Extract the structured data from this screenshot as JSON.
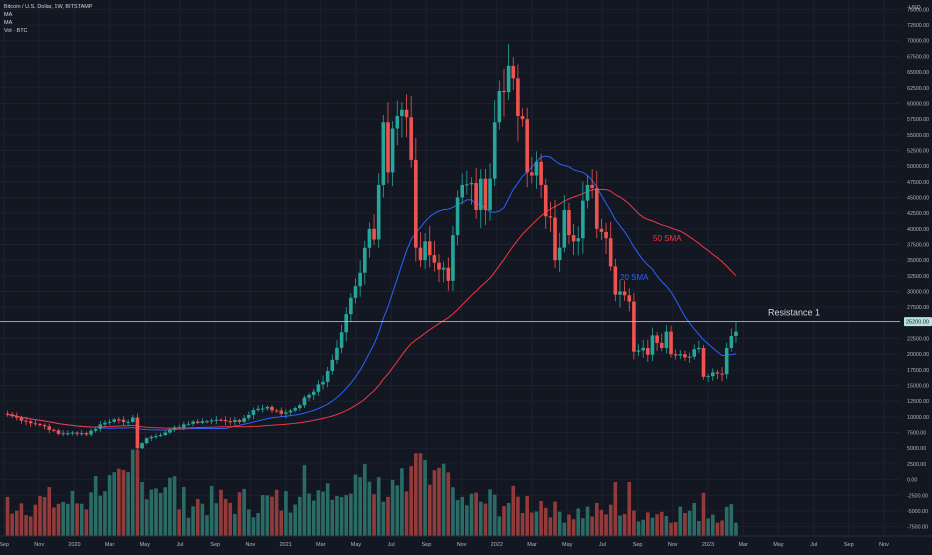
{
  "header": {
    "symbol_line": "Bitcoin / U.S. Dollar, 1W, BITSTAMP",
    "ma1_label": "MA",
    "ma2_label": "MA",
    "vol_label": "Vol · BTC"
  },
  "chart_data": {
    "type": "candlestick",
    "symbol": "Bitcoin / U.S. Dollar, 1W, BITSTAMP",
    "currency_label": "USD",
    "price_ticks": [
      75000,
      72500,
      70000,
      67500,
      65000,
      62500,
      60000,
      57500,
      55000,
      52500,
      50000,
      47500,
      45000,
      42500,
      40000,
      37500,
      35000,
      32500,
      30000,
      27500,
      25000,
      22500,
      20000,
      17500,
      15000,
      12500,
      10000,
      7500,
      5000,
      2500,
      0,
      -2500,
      -5000,
      -7500
    ],
    "price_tick_labels": [
      "75000.00",
      "72500.00",
      "70000.00",
      "67500.00",
      "65000.00",
      "62500.00",
      "60000.00",
      "57500.00",
      "55000.00",
      "52500.00",
      "50000.00",
      "47500.00",
      "45000.00",
      "42500.00",
      "40000.00",
      "37500.00",
      "35000.00",
      "32500.00",
      "30000.00",
      "27500.00",
      "25000.00",
      "22500.00",
      "20000.00",
      "17500.00",
      "15000.00",
      "12500.00",
      "10000.00",
      "7500.00",
      "5000.00",
      "2500.00",
      "0.00",
      "-2500.00",
      "-5000.00",
      "-7500.00"
    ],
    "ylim": [
      -9000,
      76500
    ],
    "time_labels": [
      "Sep",
      "Nov",
      "2020",
      "Mar",
      "May",
      "Jul",
      "Sep",
      "Nov",
      "2021",
      "Mar",
      "May",
      "Jul",
      "Sep",
      "Nov",
      "2022",
      "Mar",
      "May",
      "Jul",
      "Sep",
      "Nov",
      "2023",
      "Mar",
      "May",
      "Jul",
      "Sep",
      "Nov"
    ],
    "anchor_points": [
      [
        0,
        10400
      ],
      [
        4,
        9300
      ],
      [
        8,
        8500
      ],
      [
        11,
        7300
      ],
      [
        14,
        7500
      ],
      [
        17,
        7200
      ],
      [
        20,
        8800
      ],
      [
        23,
        9600
      ],
      [
        26,
        9200
      ],
      [
        27,
        9900
      ],
      [
        28,
        5000
      ],
      [
        30,
        6600
      ],
      [
        34,
        7500
      ],
      [
        38,
        8800
      ],
      [
        42,
        9300
      ],
      [
        46,
        9500
      ],
      [
        50,
        9200
      ],
      [
        53,
        11100
      ],
      [
        56,
        11600
      ],
      [
        59,
        10500
      ],
      [
        62,
        11400
      ],
      [
        65,
        13500
      ],
      [
        68,
        15600
      ],
      [
        70,
        19100
      ],
      [
        72,
        23500
      ],
      [
        74,
        29000
      ],
      [
        76,
        33000
      ],
      [
        78,
        40000
      ],
      [
        79,
        38300
      ],
      [
        80,
        47000
      ],
      [
        81,
        57000
      ],
      [
        82,
        49000
      ],
      [
        83,
        56000
      ],
      [
        84,
        58000
      ],
      [
        85,
        59000
      ],
      [
        86,
        57800
      ],
      [
        87,
        51000
      ],
      [
        88,
        37000
      ],
      [
        89,
        35000
      ],
      [
        90,
        38000
      ],
      [
        91,
        35800
      ],
      [
        92,
        34600
      ],
      [
        93,
        33500
      ],
      [
        94,
        33800
      ],
      [
        95,
        31700
      ],
      [
        96,
        39000
      ],
      [
        97,
        45000
      ],
      [
        98,
        47000
      ],
      [
        99,
        47100
      ],
      [
        100,
        47300
      ],
      [
        101,
        43000
      ],
      [
        102,
        48000
      ],
      [
        103,
        43000
      ],
      [
        104,
        48000
      ],
      [
        105,
        57000
      ],
      [
        106,
        62000
      ],
      [
        107,
        61800
      ],
      [
        108,
        66000
      ],
      [
        109,
        64000
      ],
      [
        110,
        58000
      ],
      [
        111,
        57500
      ],
      [
        112,
        49000
      ],
      [
        113,
        48500
      ],
      [
        114,
        50700
      ],
      [
        115,
        47000
      ],
      [
        116,
        42000
      ],
      [
        117,
        41800
      ],
      [
        118,
        35000
      ],
      [
        119,
        37000
      ],
      [
        120,
        43000
      ],
      [
        121,
        39000
      ],
      [
        122,
        38000
      ],
      [
        123,
        38500
      ],
      [
        124,
        44500
      ],
      [
        125,
        47000
      ],
      [
        126,
        46500
      ],
      [
        127,
        40000
      ],
      [
        128,
        39500
      ],
      [
        129,
        38500
      ],
      [
        130,
        34000
      ],
      [
        131,
        29500
      ],
      [
        132,
        30000
      ],
      [
        133,
        29400
      ],
      [
        134,
        28400
      ],
      [
        135,
        20400
      ],
      [
        136,
        20600
      ],
      [
        137,
        21000
      ],
      [
        138,
        19900
      ],
      [
        139,
        23000
      ],
      [
        140,
        21800
      ],
      [
        141,
        21000
      ],
      [
        142,
        23600
      ],
      [
        143,
        20000
      ],
      [
        144,
        19800
      ],
      [
        145,
        20000
      ],
      [
        146,
        19500
      ],
      [
        147,
        19600
      ],
      [
        148,
        20800
      ],
      [
        149,
        21000
      ],
      [
        150,
        16400
      ],
      [
        151,
        16500
      ],
      [
        152,
        17100
      ],
      [
        153,
        16900
      ],
      [
        154,
        16800
      ],
      [
        155,
        21000
      ],
      [
        156,
        22900
      ],
      [
        157,
        23600
      ]
    ],
    "sma20_label": "20 SMA",
    "sma50_label": "50 SMA",
    "sma20_color": "#2962ff",
    "sma50_color": "#f23645",
    "up_color": "#26a69a",
    "down_color": "#ef5350",
    "volume_up_color": "#2b6b66",
    "volume_down_color": "#933b3b",
    "resistance": {
      "label": "Resistance 1",
      "price": 25200,
      "price_tag": "25200.00"
    },
    "volume_scale_note": "volume pane shares the lower price scale"
  }
}
